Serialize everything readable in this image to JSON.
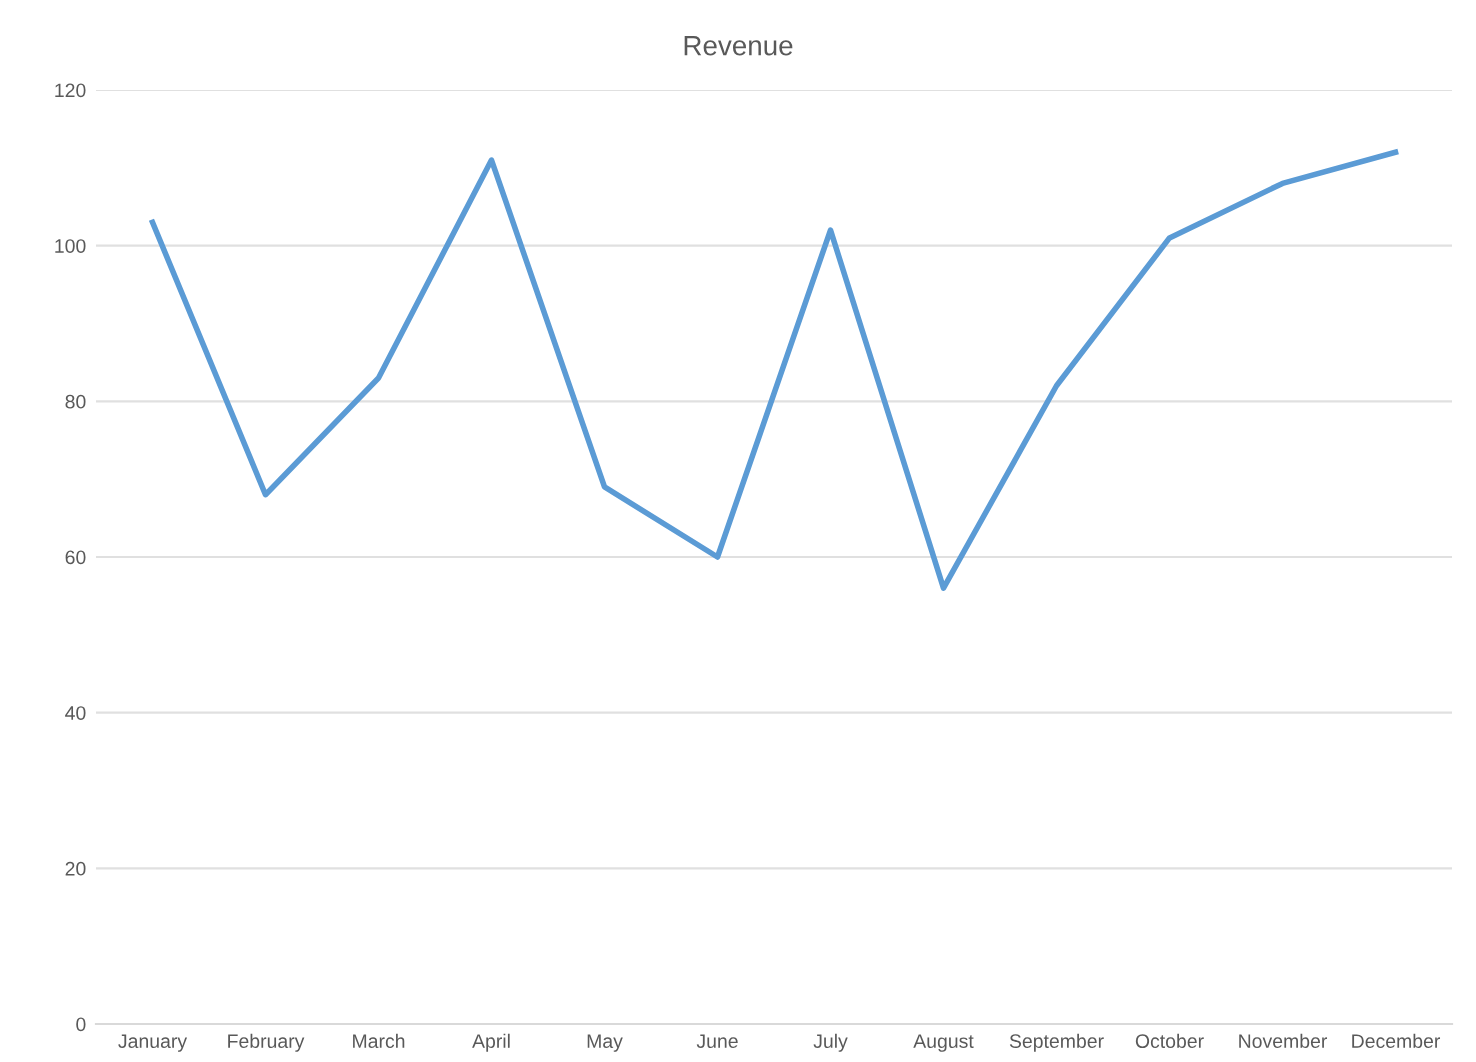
{
  "chart_data": {
    "type": "line",
    "title": "Revenue",
    "categories": [
      "January",
      "February",
      "March",
      "April",
      "May",
      "June",
      "July",
      "August",
      "September",
      "October",
      "November",
      "December"
    ],
    "series": [
      {
        "color": "#5b9bd5",
        "values": [
          103,
          68,
          83,
          111,
          69,
          60,
          102,
          56,
          82,
          101,
          108,
          112
        ]
      }
    ],
    "ylim": [
      0,
      120
    ],
    "yticks": [
      0,
      20,
      40,
      60,
      80,
      100,
      120
    ],
    "grid": "y",
    "marker": "none",
    "line_style": "solid"
  }
}
